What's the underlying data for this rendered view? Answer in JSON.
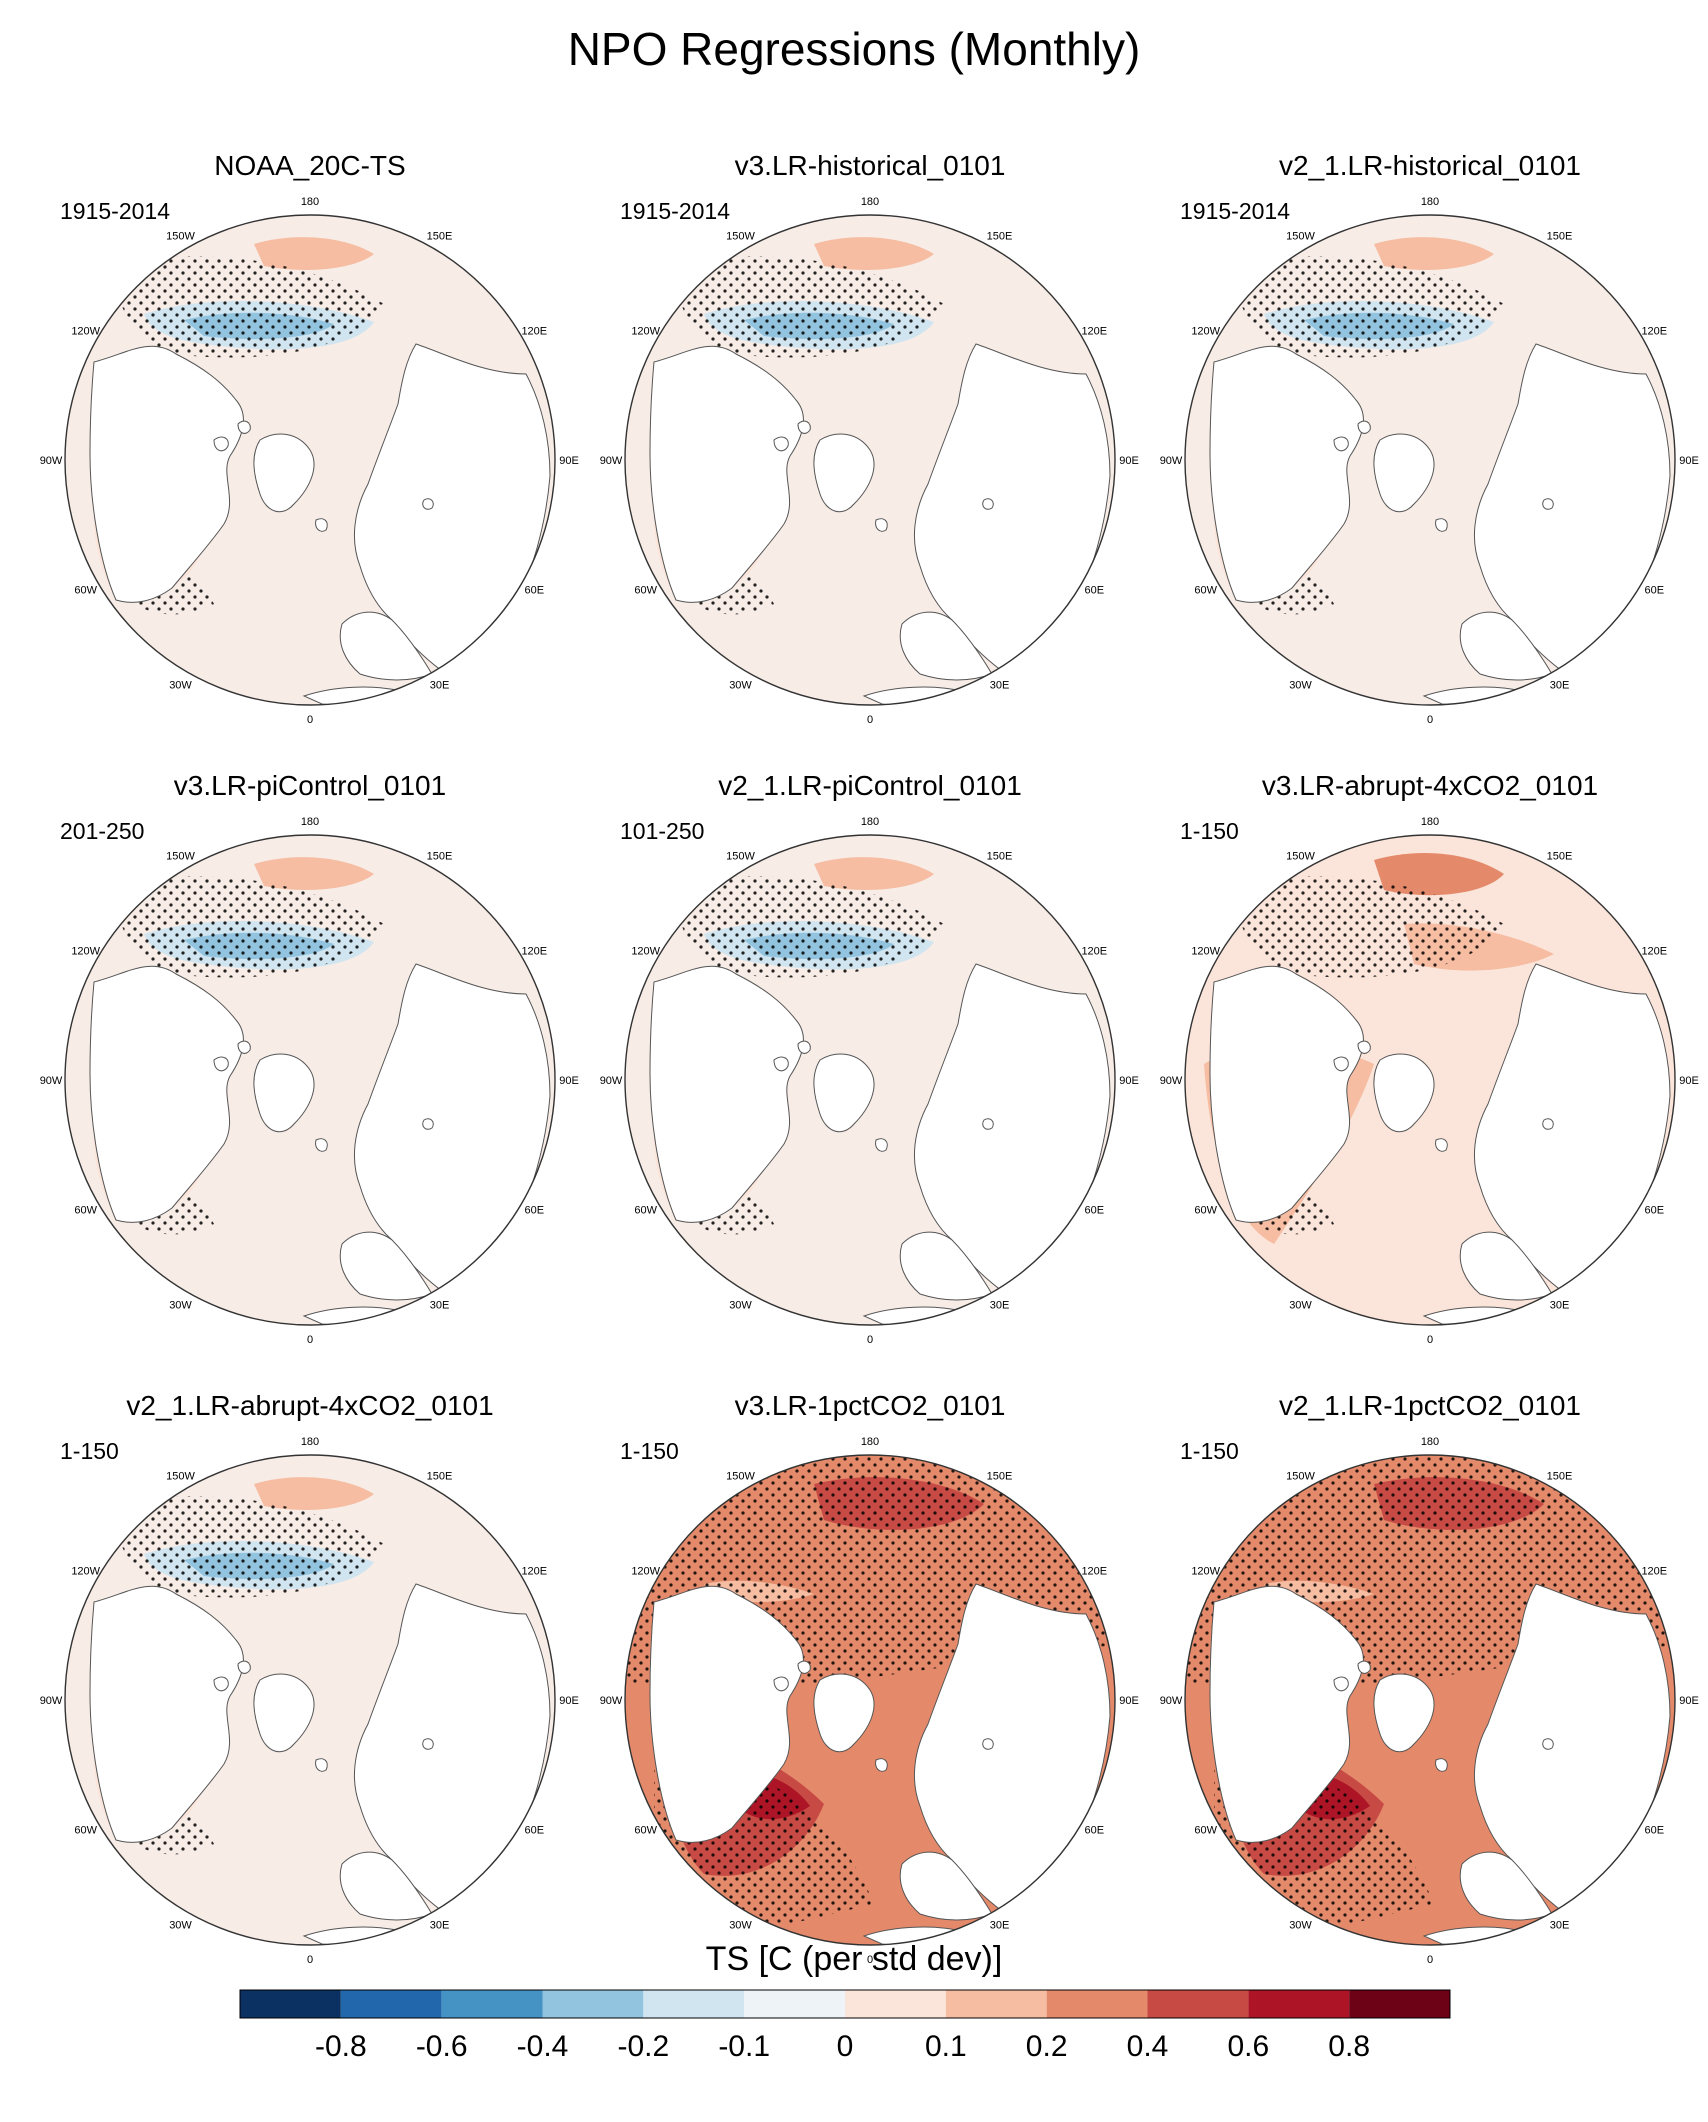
{
  "title": "NPO Regressions (Monthly)",
  "lon_labels": [
    "180",
    "150E",
    "120E",
    "90E",
    "60E",
    "30E",
    "0",
    "30W",
    "60W",
    "90W",
    "120W",
    "150W"
  ],
  "panels": [
    {
      "title": "NOAA_20C-TS",
      "period": "1915-2014",
      "pattern": "weak"
    },
    {
      "title": "v3.LR-historical_0101",
      "period": "1915-2014",
      "pattern": "weak"
    },
    {
      "title": "v2_1.LR-historical_0101",
      "period": "1915-2014",
      "pattern": "weak"
    },
    {
      "title": "v3.LR-piControl_0101",
      "period": "201-250",
      "pattern": "weak"
    },
    {
      "title": "v2_1.LR-piControl_0101",
      "period": "101-250",
      "pattern": "weak"
    },
    {
      "title": "v3.LR-abrupt-4xCO2_0101",
      "period": "1-150",
      "pattern": "warm"
    },
    {
      "title": "v2_1.LR-abrupt-4xCO2_0101",
      "period": "1-150",
      "pattern": "weak"
    },
    {
      "title": "v3.LR-1pctCO2_0101",
      "period": "1-150",
      "pattern": "hot"
    },
    {
      "title": "v2_1.LR-1pctCO2_0101",
      "period": "1-150",
      "pattern": "hot"
    }
  ],
  "colorbar": {
    "title": "TS [C (per std dev)]",
    "labels": [
      "-0.8",
      "-0.6",
      "-0.4",
      "-0.2",
      "-0.1",
      "0",
      "0.1",
      "0.2",
      "0.4",
      "0.6",
      "0.8"
    ],
    "colors": [
      "#0b3062",
      "#2266ab",
      "#4493c4",
      "#93c4df",
      "#d1e5f0",
      "#eef3f8",
      "#fbe5da",
      "#f6bda2",
      "#e48a6b",
      "#c74a44",
      "#ad1526",
      "#6d0217"
    ]
  }
}
